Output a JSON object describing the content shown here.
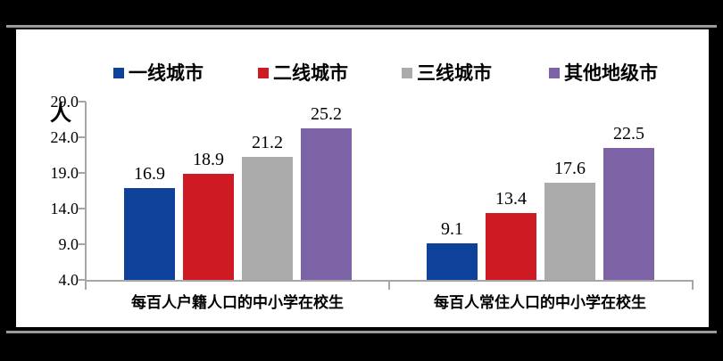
{
  "frame": {
    "background_color": "#000000",
    "panel_color": "#ffffff",
    "rule_color": "#9a9a9a"
  },
  "chart_data": {
    "type": "bar",
    "title": "",
    "unit_label": "人",
    "categories": [
      "每百人户籍人口的中小学在校生",
      "每百人常住人口的中小学在校生"
    ],
    "series": [
      {
        "name": "一线城市",
        "color": "#0e4199",
        "values": [
          16.9,
          9.1
        ]
      },
      {
        "name": "二线城市",
        "color": "#ce1b23",
        "values": [
          18.9,
          13.4
        ]
      },
      {
        "name": "三线城市",
        "color": "#ababab",
        "values": [
          21.2,
          17.6
        ]
      },
      {
        "name": "其他地级市",
        "color": "#7c63a5",
        "values": [
          25.2,
          22.5
        ]
      }
    ],
    "value_labels": [
      [
        "16.9",
        "18.9",
        "21.2",
        "25.2"
      ],
      [
        "9.1",
        "13.4",
        "17.6",
        "22.5"
      ]
    ],
    "ylim": [
      4.0,
      29.0
    ],
    "yticks": [
      "29.0",
      "24.0",
      "19.0",
      "14.0",
      "9.0",
      "4.0"
    ],
    "ytick_values": [
      29.0,
      24.0,
      19.0,
      14.0,
      9.0,
      4.0
    ],
    "grid": false,
    "legend_position": "top",
    "axis_color": "#a6a6a6"
  }
}
